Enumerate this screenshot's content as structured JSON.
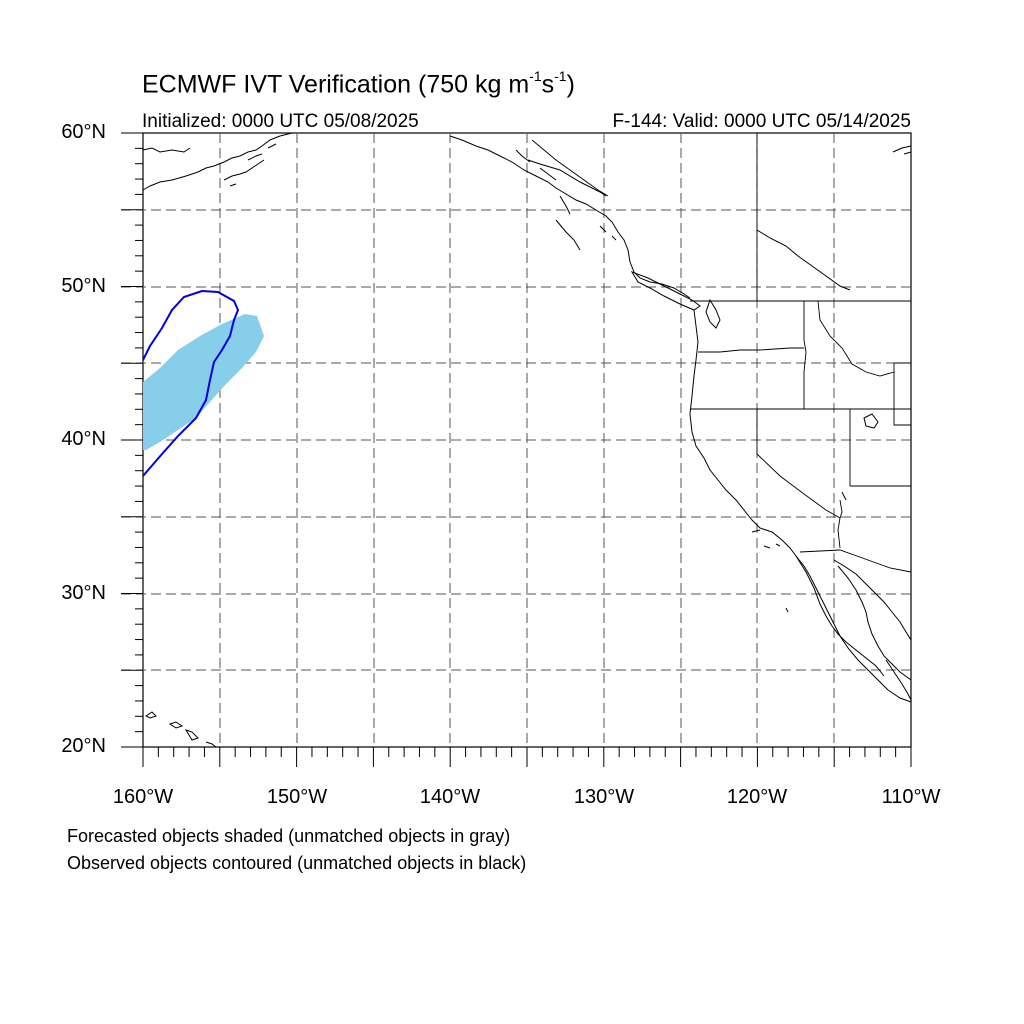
{
  "title": {
    "main": "ECMWF IVT Verification (750 kg m",
    "exp1": "-1",
    "mid": "s",
    "exp2": "-1",
    "close": ")"
  },
  "initialized": "Initialized: 0000 UTC 05/08/2025",
  "valid": "F-144: Valid: 0000 UTC 05/14/2025",
  "lat_labels": [
    "60°N",
    "50°N",
    "40°N",
    "30°N",
    "20°N"
  ],
  "lon_labels": [
    "160°W",
    "150°W",
    "140°W",
    "130°W",
    "120°W",
    "110°W"
  ],
  "notes": {
    "forecast": "Forecasted objects shaded (unmatched objects in gray)",
    "observed": "Observed objects contoured (unmatched objects in black)"
  },
  "colors": {
    "forecast_matched": "#87ceeb",
    "observed_matched": "#0000dd",
    "coast": "#000000",
    "grid": "#555555"
  }
}
